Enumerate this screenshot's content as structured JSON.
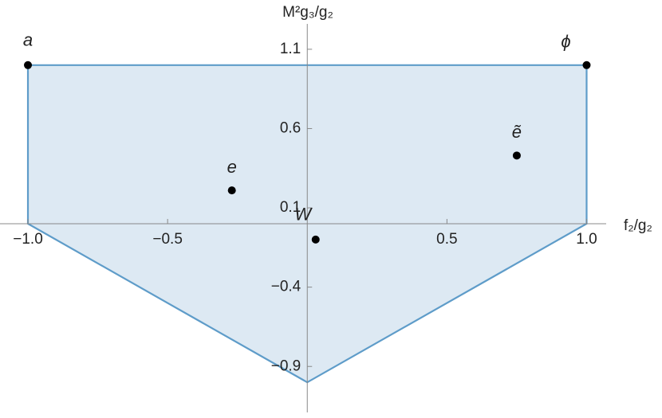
{
  "chart_data": {
    "type": "region",
    "x_label": "f₂/g₂",
    "y_label": "M²g₃/g₂",
    "xlim": [
      -1.1,
      1.07
    ],
    "ylim": [
      -1.19,
      1.26
    ],
    "xticks": [
      {
        "value": -1,
        "label": "−1.0"
      },
      {
        "value": -0.5,
        "label": "−0.5"
      },
      0.5,
      {
        "value": 1,
        "label": "1.0"
      }
    ],
    "yticks": [
      1.1,
      0.6,
      0.1,
      {
        "value": -0.4,
        "label": "−0.4"
      },
      {
        "value": -0.9,
        "label": "−0.9"
      }
    ],
    "region": {
      "x": [
        -1,
        1,
        1,
        0,
        -1
      ],
      "y": [
        1,
        1,
        0,
        -1,
        0
      ],
      "color": "#5e9cc9",
      "fill": "#dde9f3"
    },
    "points": [
      {
        "label": "a",
        "x": -1,
        "y": 1
      },
      {
        "label": "ϕ",
        "x": 1,
        "y": 1
      },
      {
        "label": "e",
        "x": -0.27,
        "y": 0.21
      },
      {
        "label": "ẽ",
        "x": 0.75,
        "y": 0.43
      },
      {
        "label": "W",
        "x": 0.03,
        "y": -0.1
      }
    ],
    "point_color": "#000000"
  }
}
